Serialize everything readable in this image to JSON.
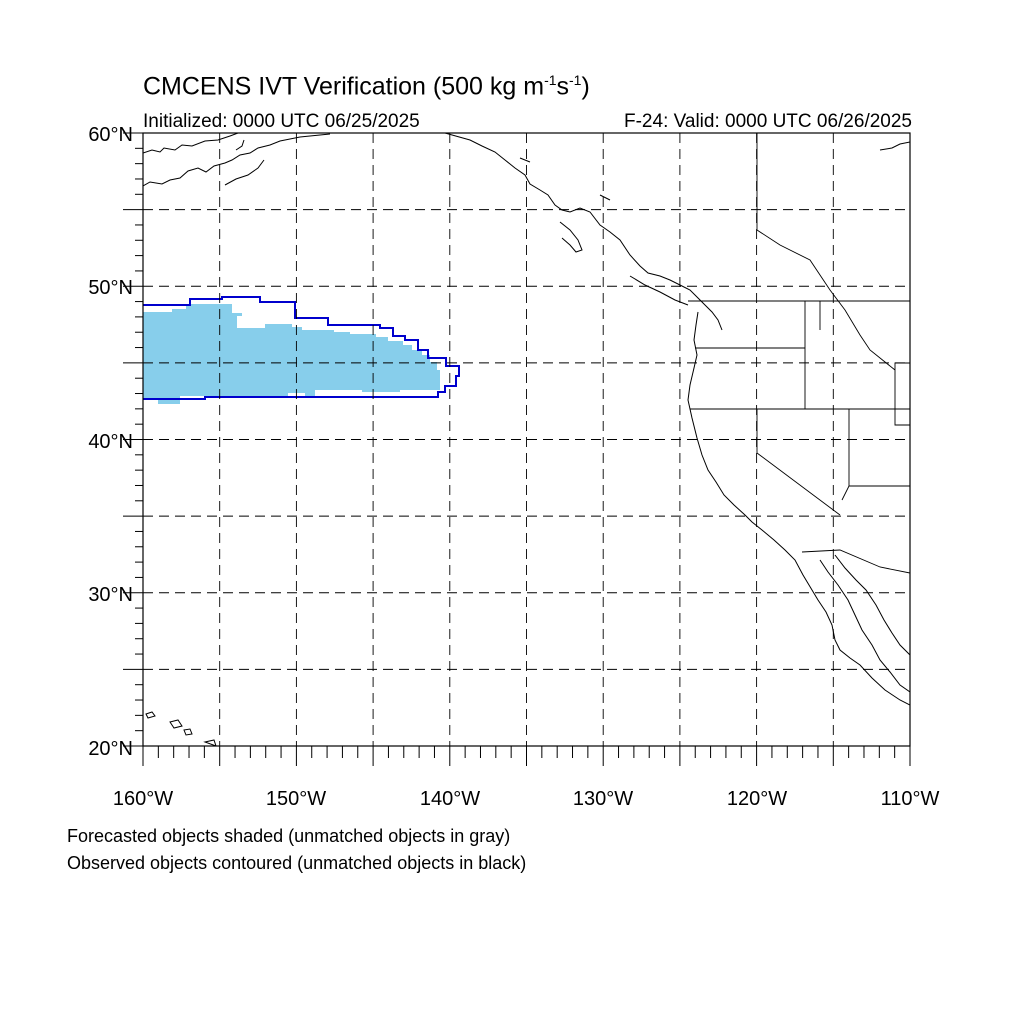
{
  "title": {
    "main": "CMCENS IVT Verification (500 kg m",
    "sup1": "-1",
    "mid": "s",
    "sup2": "-1",
    "end": ")"
  },
  "subtitle_left": "Initialized: 0000 UTC 06/25/2025",
  "subtitle_right": "F-24: Valid: 0000 UTC 06/26/2025",
  "lat_labels": [
    "60°N",
    "50°N",
    "40°N",
    "30°N",
    "20°N"
  ],
  "lon_labels": [
    "160°W",
    "150°W",
    "140°W",
    "130°W",
    "120°W",
    "110°W"
  ],
  "footer": {
    "line1": "Forecasted objects shaded (unmatched objects in gray)",
    "line2": "Observed objects contoured (unmatched objects in black)"
  },
  "colors": {
    "forecast_fill": "#87ceeb",
    "observed_contour": "#0000cd",
    "coastline": "#000000",
    "grid": "#000000"
  },
  "map_extent": {
    "lon": [
      -160,
      -110
    ],
    "lat": [
      20,
      60
    ]
  }
}
